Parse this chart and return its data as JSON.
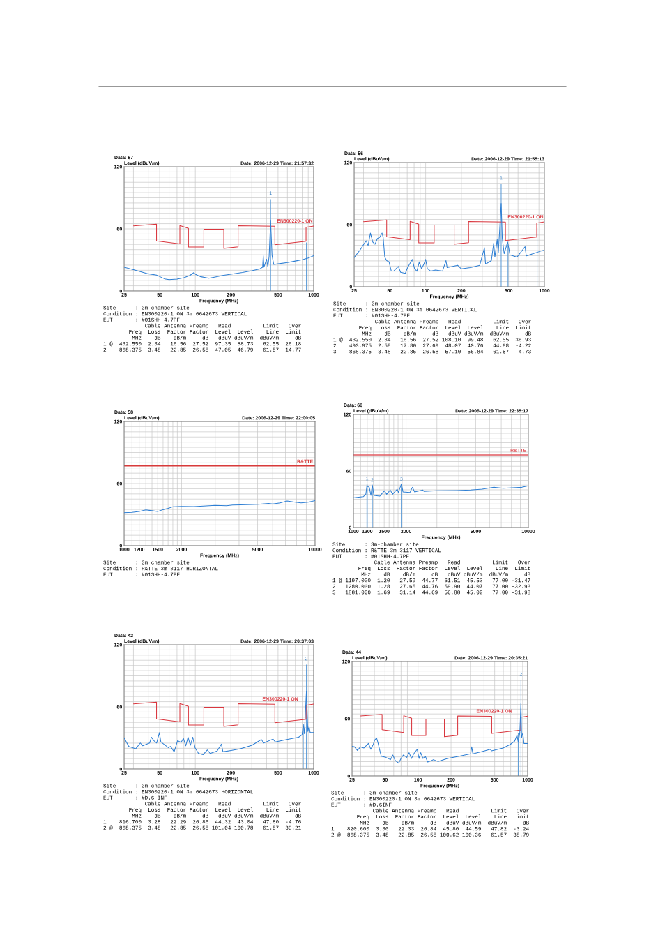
{
  "chart_data": [
    {
      "type": "line",
      "title": "Date: 2006-12-29 Time: 21:57:32",
      "subtitle": "Data: 67",
      "xlabel": "Frequency (MHz)",
      "ylabel": "Level (dBuV/m)",
      "log": "x",
      "grid": true,
      "xlim": [
        25,
        1000
      ],
      "ylim": [
        0,
        120
      ],
      "xticks": [
        25,
        {
          "value": 30,
          "label": null
        },
        {
          "value": 40,
          "label": null
        },
        50,
        {
          "value": 60,
          "label": null
        },
        {
          "value": 70,
          "label": null
        },
        {
          "value": 80,
          "label": null
        },
        {
          "value": 90,
          "label": null
        },
        100,
        200,
        {
          "value": 300,
          "label": null
        },
        {
          "value": 400,
          "label": null
        },
        500,
        {
          "value": 600,
          "label": null
        },
        {
          "value": 700,
          "label": null
        },
        {
          "value": 800,
          "label": null
        },
        {
          "value": 900,
          "label": null
        },
        1000
      ],
      "yticks": [
        0,
        {
          "value": 5,
          "label": null
        },
        {
          "value": 10,
          "label": null
        },
        {
          "value": 15,
          "label": null
        },
        {
          "value": 20,
          "label": null
        },
        {
          "value": 25,
          "label": null
        },
        {
          "value": 30,
          "label": null
        },
        {
          "value": 35,
          "label": null
        },
        {
          "value": 40,
          "label": null
        },
        {
          "value": 45,
          "label": null
        },
        {
          "value": 50,
          "label": null
        },
        {
          "value": 55,
          "label": null
        },
        60,
        {
          "value": 65,
          "label": null
        },
        {
          "value": 70,
          "label": null
        },
        {
          "value": 75,
          "label": null
        },
        {
          "value": 80,
          "label": null
        },
        {
          "value": 85,
          "label": null
        },
        {
          "value": 90,
          "label": null
        },
        {
          "value": 95,
          "label": null
        },
        {
          "value": 100,
          "label": null
        },
        {
          "value": 105,
          "label": null
        },
        {
          "value": 110,
          "label": null
        },
        {
          "value": 115,
          "label": null
        },
        120
      ],
      "series": [
        {
          "name": "EN300220-1 ON",
          "color": "#d9363e",
          "x": [
            30,
            47,
            47,
            74,
            74,
            87.5,
            87.5,
            118,
            118,
            174,
            174,
            230,
            230,
            470,
            470,
            862,
            862,
            1000
          ],
          "values": [
            62.9,
            64.5,
            48.4,
            45.5,
            63.2,
            60.5,
            42.5,
            42.5,
            59.6,
            59.6,
            41.2,
            42.6,
            63.0,
            62.5,
            44.7,
            48.1,
            61.5,
            62.7
          ]
        },
        {
          "color": "#2e7fd4",
          "x": [
            25,
            30,
            40,
            47,
            50,
            55,
            60,
            70,
            80,
            90,
            97,
            100,
            110,
            130,
            150,
            170,
            200,
            250,
            300,
            350,
            370,
            375,
            380,
            400,
            410,
            420,
            432.55,
            445,
            460,
            500,
            600,
            700,
            800,
            900,
            1000
          ],
          "values": [
            22.9,
            20.6,
            16.6,
            15.3,
            13.9,
            11.7,
            11.0,
            11.4,
            12.8,
            15.0,
            17.7,
            16.2,
            13.9,
            12.3,
            13.7,
            15.0,
            16.2,
            17.9,
            19.5,
            21.3,
            22.9,
            34.1,
            23.0,
            30.7,
            23.3,
            33.0,
            67.7,
            34.1,
            25.6,
            26.2,
            27.4,
            28.9,
            30.1,
            31.9,
            34.1
          ]
        },
        {
          "type": "bar",
          "color": "#5a9ad6",
          "x": [
            432.55,
            868.375
          ],
          "values": [
            88.73,
            46.79
          ]
        }
      ],
      "annotations": [
        {
          "text": "1",
          "x": 432.55,
          "y": 88.73
        },
        "Site      : 3m chamber site",
        "Condition : EN300220-1 ON 3m 0642673 VERTICAL",
        "EUT       : #01SHH-4.7PF",
        "             Cable Antenna Preamp   Read          Limit   Over",
        "        Freq  Loss  Factor Factor  Level  Level    Line  Limit",
        "         MHz    dB    dB/m     dB   dBuV dBuV/m  dBuV/m     dB",
        "1 @  432.550  2.34   16.56  27.52  97.35  88.73   62.55  26.18",
        "2    868.375  3.48   22.85  26.58  47.05  46.79   61.57 -14.77"
      ]
    },
    {
      "type": "line",
      "title": "Date: 2006-12-29 Time: 21:55:13",
      "subtitle": "Data: 56",
      "xlabel": "Frequency (MHz)",
      "ylabel": "Level (dBuV/m)",
      "log": "x",
      "grid": true,
      "xlim": [
        25,
        1000
      ],
      "ylim": [
        0,
        120
      ],
      "xticks": [
        25,
        {
          "value": 30,
          "label": null
        },
        {
          "value": 40,
          "label": null
        },
        50,
        {
          "value": 60,
          "label": null
        },
        {
          "value": 70,
          "label": null
        },
        {
          "value": 80,
          "label": null
        },
        {
          "value": 90,
          "label": null
        },
        100,
        200,
        {
          "value": 300,
          "label": null
        },
        {
          "value": 400,
          "label": null
        },
        500,
        {
          "value": 600,
          "label": null
        },
        {
          "value": 700,
          "label": null
        },
        {
          "value": 800,
          "label": null
        },
        {
          "value": 900,
          "label": null
        },
        1000
      ],
      "yticks": [
        0,
        {
          "value": 5,
          "label": null
        },
        {
          "value": 10,
          "label": null
        },
        {
          "value": 15,
          "label": null
        },
        {
          "value": 20,
          "label": null
        },
        {
          "value": 25,
          "label": null
        },
        {
          "value": 30,
          "label": null
        },
        {
          "value": 35,
          "label": null
        },
        {
          "value": 40,
          "label": null
        },
        {
          "value": 45,
          "label": null
        },
        {
          "value": 50,
          "label": null
        },
        {
          "value": 55,
          "label": null
        },
        60,
        {
          "value": 65,
          "label": null
        },
        {
          "value": 70,
          "label": null
        },
        {
          "value": 75,
          "label": null
        },
        {
          "value": 80,
          "label": null
        },
        {
          "value": 85,
          "label": null
        },
        {
          "value": 90,
          "label": null
        },
        {
          "value": 95,
          "label": null
        },
        {
          "value": 100,
          "label": null
        },
        {
          "value": 105,
          "label": null
        },
        {
          "value": 110,
          "label": null
        },
        {
          "value": 115,
          "label": null
        },
        120
      ],
      "series": [
        {
          "name": "EN300220-1 ON",
          "color": "#d9363e",
          "x": [
            30,
            47,
            47,
            74,
            74,
            87.5,
            87.5,
            118,
            118,
            174,
            174,
            230,
            230,
            470,
            470,
            862,
            862,
            1000
          ],
          "values": [
            62.9,
            64.5,
            48.4,
            45.5,
            63.2,
            60.5,
            42.5,
            42.5,
            59.6,
            59.6,
            41.2,
            42.6,
            63.0,
            62.5,
            44.7,
            48.1,
            61.5,
            62.7
          ]
        },
        {
          "color": "#2e7fd4",
          "x": [
            25,
            28.0,
            30.6,
            31.6,
            32.8,
            34.3,
            35.9,
            37.5,
            39.3,
            41.1,
            43.0,
            43.9,
            45.3,
            47.0,
            49.2,
            51.4,
            53.8,
            58.9,
            61.6,
            67.4,
            70.5,
            77.2,
            80.7,
            84.5,
            88.4,
            92.4,
            96.7,
            100,
            103.5,
            110.7,
            121.2,
            138.7,
            148.4,
            151.8,
            186,
            199,
            238.3,
            285.5,
            312.5,
            319.6,
            357.7,
            374.2,
            382.8,
            400.5,
            409.6,
            432.55,
            442.1,
            458.5,
            490.6,
            513.3,
            587.4,
            687.7,
            703.6,
            805.3,
            922.2,
            1000
          ],
          "values": [
            28.2,
            35.4,
            42.2,
            44.4,
            39.9,
            51.9,
            43.3,
            41.1,
            46.7,
            47.8,
            51.9,
            47.8,
            28.6,
            25.3,
            24.1,
            15.1,
            15.1,
            19.6,
            14.0,
            12.9,
            18.5,
            26.4,
            17.4,
            15.1,
            24.1,
            17.4,
            21.9,
            26.4,
            17.4,
            15.1,
            16.2,
            15.1,
            25.3,
            18.5,
            20.8,
            17.4,
            18.5,
            20.8,
            37.7,
            21.9,
            25.3,
            42.2,
            28.6,
            45.6,
            33.2,
            80.5,
            46.7,
            32.0,
            43.3,
            30.9,
            28.6,
            38.8,
            29.8,
            32.0,
            34.3,
            35.4
          ]
        },
        {
          "type": "bar",
          "color": "#5a9ad6",
          "x": [
            432.55,
            493.975,
            868.375
          ],
          "values": [
            99.48,
            40.76,
            56.84
          ]
        }
      ],
      "annotations": [
        {
          "text": "1",
          "x": 432.55,
          "y": 99.48
        },
        "Site      : 3m-chamber site",
        "Condition : EN300220-1 ON 3m 0642673 VERTICAL",
        "EUT       : #01SHH-4.7PF",
        "             Cable Antenna Preamp   Read          Limit   Over",
        "        Freq  Loss  Factor Factor  Level  Level    Line  Limit",
        "         MHz    dB    dB/m     dB   dBuV dBuV/m  dBuV/m     dB",
        "1 @  432.550  2.34   16.56  27.52 108.10  99.48   62.55  36.93",
        "2    493.975  2.58   17.80  27.69  48.07  40.76   44.98  -4.22",
        "3    868.375  3.48   22.85  26.58  57.10  56.84   61.57  -4.73"
      ]
    },
    {
      "type": "line",
      "title": "Date: 2006-12-29 Time: 22:00:05",
      "subtitle": "Data: 58",
      "xlabel": "Frequency (MHz)",
      "ylabel": "Level (dBuV/m)",
      "log": "x",
      "grid": true,
      "xlim": [
        1000,
        10000
      ],
      "ylim": [
        0,
        120
      ],
      "xticks": [
        1000,
        {
          "value": 1100,
          "label": null
        },
        1200,
        {
          "value": 1300,
          "label": null
        },
        {
          "value": 1400,
          "label": null
        },
        1500,
        {
          "value": 1600,
          "label": null
        },
        {
          "value": 1700,
          "label": null
        },
        {
          "value": 1800,
          "label": null
        },
        {
          "value": 1900,
          "label": null
        },
        2000,
        {
          "value": 3000,
          "label": null
        },
        {
          "value": 4000,
          "label": null
        },
        5000,
        {
          "value": 6000,
          "label": null
        },
        {
          "value": 7000,
          "label": null
        },
        {
          "value": 8000,
          "label": null
        },
        {
          "value": 9000,
          "label": null
        },
        10000
      ],
      "yticks": [
        0,
        {
          "value": 5,
          "label": null
        },
        {
          "value": 10,
          "label": null
        },
        {
          "value": 15,
          "label": null
        },
        {
          "value": 20,
          "label": null
        },
        {
          "value": 25,
          "label": null
        },
        {
          "value": 30,
          "label": null
        },
        {
          "value": 35,
          "label": null
        },
        {
          "value": 40,
          "label": null
        },
        {
          "value": 45,
          "label": null
        },
        {
          "value": 50,
          "label": null
        },
        {
          "value": 55,
          "label": null
        },
        60,
        {
          "value": 65,
          "label": null
        },
        {
          "value": 70,
          "label": null
        },
        {
          "value": 75,
          "label": null
        },
        {
          "value": 80,
          "label": null
        },
        {
          "value": 85,
          "label": null
        },
        {
          "value": 90,
          "label": null
        },
        {
          "value": 95,
          "label": null
        },
        {
          "value": 100,
          "label": null
        },
        {
          "value": 105,
          "label": null
        },
        {
          "value": 110,
          "label": null
        },
        {
          "value": 115,
          "label": null
        },
        120
      ],
      "ref_lines": [
        {
          "axis": "y",
          "value": 77,
          "label": "R&TTE",
          "color": "#d83a3a"
        }
      ],
      "series": [
        {
          "color": "#2e7fd4",
          "x": [
            1000,
            1100,
            1200,
            1300,
            1400,
            1500,
            1600,
            1700,
            1800,
            2000,
            2322,
            2600,
            2990,
            3440,
            3700,
            4072,
            5025,
            5704,
            6000,
            6564,
            7140,
            7766,
            8000,
            8448,
            9193,
            10000
          ],
          "values": [
            31.9,
            32.2,
            33.0,
            34.5,
            33.8,
            33.0,
            34.8,
            36.0,
            37.5,
            37.9,
            37.7,
            38.2,
            39.0,
            38.6,
            39.2,
            39.5,
            39.9,
            40.8,
            40.2,
            41.3,
            43.1,
            42.2,
            41.8,
            41.3,
            41.9,
            43.5
          ]
        }
      ],
      "annotations": [
        "Site      : 3m chamber site",
        "Condition : R&TTE 3m 3117 HORIZONTAL",
        "EUT       : #01SHH-4.7PF"
      ]
    },
    {
      "type": "line",
      "title": "Date: 2006-12-29 Time: 22:35:17",
      "subtitle": "Data: 60",
      "xlabel": "Frequency (MHz)",
      "ylabel": "Level (dBuV/m)",
      "log": "x",
      "grid": true,
      "xlim": [
        1000,
        10000
      ],
      "ylim": [
        0,
        120
      ],
      "xticks": [
        1000,
        {
          "value": 1100,
          "label": null
        },
        1200,
        {
          "value": 1300,
          "label": null
        },
        {
          "value": 1400,
          "label": null
        },
        1500,
        {
          "value": 1600,
          "label": null
        },
        {
          "value": 1700,
          "label": null
        },
        {
          "value": 1800,
          "label": null
        },
        {
          "value": 1900,
          "label": null
        },
        2000,
        {
          "value": 3000,
          "label": null
        },
        {
          "value": 4000,
          "label": null
        },
        5000,
        {
          "value": 6000,
          "label": null
        },
        {
          "value": 7000,
          "label": null
        },
        {
          "value": 8000,
          "label": null
        },
        {
          "value": 9000,
          "label": null
        },
        10000
      ],
      "yticks": [
        0,
        {
          "value": 5,
          "label": null
        },
        {
          "value": 10,
          "label": null
        },
        {
          "value": 15,
          "label": null
        },
        {
          "value": 20,
          "label": null
        },
        {
          "value": 25,
          "label": null
        },
        {
          "value": 30,
          "label": null
        },
        {
          "value": 35,
          "label": null
        },
        {
          "value": 40,
          "label": null
        },
        {
          "value": 45,
          "label": null
        },
        {
          "value": 50,
          "label": null
        },
        {
          "value": 55,
          "label": null
        },
        60,
        {
          "value": 65,
          "label": null
        },
        {
          "value": 70,
          "label": null
        },
        {
          "value": 75,
          "label": null
        },
        {
          "value": 80,
          "label": null
        },
        {
          "value": 85,
          "label": null
        },
        {
          "value": 90,
          "label": null
        },
        {
          "value": 95,
          "label": null
        },
        {
          "value": 100,
          "label": null
        },
        {
          "value": 105,
          "label": null
        },
        {
          "value": 110,
          "label": null
        },
        {
          "value": 115,
          "label": null
        },
        120
      ],
      "ref_lines": [
        {
          "axis": "y",
          "value": 77,
          "label": "R&TTE",
          "color": "#e05a60"
        }
      ],
      "series": [
        {
          "color": "#2e7fd4",
          "x": [
            1000,
            1141,
            1177,
            1195,
            1232,
            1259,
            1282,
            1310,
            1414,
            1503,
            1550,
            1623,
            1674,
            1779,
            1807,
            1881,
            1921,
            2106,
            2173,
            2239,
            2494,
            2532,
            2997,
            3890,
            4676,
            5449,
            6353,
            7180,
            8120,
            9178,
            10000
          ],
          "values": [
            31.6,
            32.8,
            35.3,
            44.0,
            42.7,
            34.1,
            45.2,
            34.1,
            33.3,
            39.0,
            35.3,
            39.8,
            35.3,
            40.7,
            37.3,
            46.4,
            37.8,
            37.3,
            42.7,
            37.8,
            39.8,
            38.3,
            39.0,
            39.3,
            39.8,
            40.7,
            42.7,
            41.7,
            42.2,
            42.7,
            44.2
          ]
        },
        {
          "type": "bar",
          "color": "#5a9ad6",
          "x": [
            1197,
            1280,
            1881
          ],
          "values": [
            45.53,
            44.07,
            45.02
          ]
        }
      ],
      "annotations": [
        {
          "text": "1",
          "x": 1197,
          "y": 45.53
        },
        {
          "text": "2",
          "x": 1280,
          "y": 44.07
        },
        {
          "text": "3",
          "x": 1881,
          "y": 45.02
        },
        "Site      : 3m-chamber site",
        "Condition : R&TTE 3m 3117 VERTICAL",
        "EUT       : #01SHH-4.7PF",
        "             Cable Antenna Preamp   Read          Limit   Over",
        "        Freq  Loss  Factor Factor  Level  Level    Line  Limit",
        "         MHz    dB    dB/m     dB   dBuV dBuV/m  dBuV/m     dB",
        "1 @ 1197.000  1.20   27.59  44.77  61.51  45.53   77.00 -31.47",
        "2   1280.000  1.28   27.65  44.76  59.90  44.07   77.00 -32.93",
        "3   1881.000  1.69   31.14  44.69  56.88  45.02   77.00 -31.98"
      ]
    },
    {
      "type": "line",
      "title": "Date: 2006-12-29 Time: 20:37:03",
      "subtitle": "Data: 42",
      "xlabel": "Frequency (MHz)",
      "ylabel": "Level (dBuV/m)",
      "log": "x",
      "grid": true,
      "xlim": [
        25,
        1000
      ],
      "ylim": [
        0,
        120
      ],
      "xticks": [
        25,
        {
          "value": 30,
          "label": null
        },
        {
          "value": 40,
          "label": null
        },
        50,
        {
          "value": 60,
          "label": null
        },
        {
          "value": 70,
          "label": null
        },
        {
          "value": 80,
          "label": null
        },
        {
          "value": 90,
          "label": null
        },
        100,
        200,
        {
          "value": 300,
          "label": null
        },
        {
          "value": 400,
          "label": null
        },
        500,
        {
          "value": 600,
          "label": null
        },
        {
          "value": 700,
          "label": null
        },
        {
          "value": 800,
          "label": null
        },
        {
          "value": 900,
          "label": null
        },
        1000
      ],
      "yticks": [
        0,
        {
          "value": 5,
          "label": null
        },
        {
          "value": 10,
          "label": null
        },
        {
          "value": 15,
          "label": null
        },
        {
          "value": 20,
          "label": null
        },
        {
          "value": 25,
          "label": null
        },
        {
          "value": 30,
          "label": null
        },
        {
          "value": 35,
          "label": null
        },
        {
          "value": 40,
          "label": null
        },
        {
          "value": 45,
          "label": null
        },
        {
          "value": 50,
          "label": null
        },
        {
          "value": 55,
          "label": null
        },
        60,
        {
          "value": 65,
          "label": null
        },
        {
          "value": 70,
          "label": null
        },
        {
          "value": 75,
          "label": null
        },
        {
          "value": 80,
          "label": null
        },
        {
          "value": 85,
          "label": null
        },
        {
          "value": 90,
          "label": null
        },
        {
          "value": 95,
          "label": null
        },
        {
          "value": 100,
          "label": null
        },
        {
          "value": 105,
          "label": null
        },
        {
          "value": 110,
          "label": null
        },
        {
          "value": 115,
          "label": null
        },
        120
      ],
      "series": [
        {
          "name": "EN300220-1 ON",
          "color": "#d9363e",
          "x": [
            30,
            47,
            47,
            74,
            74,
            87.5,
            87.5,
            118,
            118,
            174,
            174,
            230,
            230,
            470,
            470,
            862,
            862,
            1000
          ],
          "values": [
            62.9,
            64.5,
            48.4,
            45.5,
            63.2,
            60.5,
            42.5,
            42.5,
            59.6,
            59.6,
            41.2,
            42.6,
            63.0,
            62.5,
            44.7,
            48.1,
            61.5,
            62.7
          ]
        },
        {
          "color": "#2e7fd4",
          "x": [
            25,
            27.4,
            31.3,
            34.3,
            35.9,
            41.1,
            42.6,
            44.6,
            47.1,
            49.7,
            51.1,
            59.1,
            61.8,
            66.2,
            70.8,
            75.8,
            79.3,
            83.0,
            86.8,
            90.8,
            95.1,
            99.4,
            106.4,
            116.5,
            126.4,
            133.4,
            152.8,
            165.8,
            171.2,
            200.6,
            240.3,
            301.3,
            361.3,
            378.1,
            453.1,
            474.1,
            594.3,
            745.6,
            797.5,
            816.7,
            834.5,
            868.375,
            893.3,
            913.6,
            934.6,
            1000
          ],
          "values": [
            30.1,
            21.8,
            19.5,
            25.1,
            22.4,
            25.1,
            30.7,
            27.4,
            25.1,
            35.2,
            26.2,
            20.6,
            21.8,
            16.6,
            27.4,
            25.6,
            29.6,
            22.4,
            30.7,
            22.9,
            30.7,
            20.6,
            15.0,
            13.9,
            18.4,
            15.0,
            17.3,
            24.0,
            16.6,
            17.9,
            19.5,
            22.9,
            28.5,
            25.1,
            28.9,
            26.2,
            28.5,
            30.7,
            33.0,
            43.1,
            34.1,
            74.9,
            36.3,
            40.8,
            35.2,
            35.2
          ]
        },
        {
          "type": "bar",
          "color": "#5a9ad6",
          "x": [
            816.7,
            868.375
          ],
          "values": [
            43.04,
            100.78
          ]
        }
      ],
      "annotations": [
        {
          "text": "2",
          "x": 868.375,
          "y": 100.78
        },
        "Site      : 3m-chamber site",
        "Condition : EN300220-1 ON 3m 0642673 HORIZONTAL",
        "EUT       : #D.6 INF",
        "             Cable Antenna Preamp   Read          Limit   Over",
        "        Freq  Loss  Factor Factor  Level  Level    Line  Limit",
        "         MHz    dB    dB/m     dB   dBuV dBuV/m  dBuV/m     dB",
        "1    816.700  3.28   22.29  26.86  44.32  43.04   47.80  -4.76",
        "2 @  868.375  3.48   22.85  26.58 101.04 100.78   61.57  39.21"
      ]
    },
    {
      "type": "line",
      "title": "Date: 2006-12-29 Time: 20:35:21",
      "subtitle": "Data: 44",
      "xlabel": "Frequency (MHz)",
      "ylabel": "Level (dBuV/m)",
      "log": "x",
      "grid": true,
      "xlim": [
        25,
        1000
      ],
      "ylim": [
        0,
        120
      ],
      "xticks": [
        25,
        {
          "value": 30,
          "label": null
        },
        {
          "value": 40,
          "label": null
        },
        50,
        {
          "value": 60,
          "label": null
        },
        {
          "value": 70,
          "label": null
        },
        {
          "value": 80,
          "label": null
        },
        {
          "value": 90,
          "label": null
        },
        100,
        200,
        {
          "value": 300,
          "label": null
        },
        {
          "value": 400,
          "label": null
        },
        500,
        {
          "value": 600,
          "label": null
        },
        {
          "value": 700,
          "label": null
        },
        {
          "value": 800,
          "label": null
        },
        {
          "value": 900,
          "label": null
        },
        1000
      ],
      "yticks": [
        0,
        {
          "value": 5,
          "label": null
        },
        {
          "value": 10,
          "label": null
        },
        {
          "value": 15,
          "label": null
        },
        {
          "value": 20,
          "label": null
        },
        {
          "value": 25,
          "label": null
        },
        {
          "value": 30,
          "label": null
        },
        {
          "value": 35,
          "label": null
        },
        {
          "value": 40,
          "label": null
        },
        {
          "value": 45,
          "label": null
        },
        {
          "value": 50,
          "label": null
        },
        {
          "value": 55,
          "label": null
        },
        60,
        {
          "value": 65,
          "label": null
        },
        {
          "value": 70,
          "label": null
        },
        {
          "value": 75,
          "label": null
        },
        {
          "value": 80,
          "label": null
        },
        {
          "value": 85,
          "label": null
        },
        {
          "value": 90,
          "label": null
        },
        {
          "value": 95,
          "label": null
        },
        {
          "value": 100,
          "label": null
        },
        {
          "value": 105,
          "label": null
        },
        {
          "value": 110,
          "label": null
        },
        {
          "value": 115,
          "label": null
        },
        120
      ],
      "series": [
        {
          "name": "EN300220-1 ON",
          "color": "#d9363e",
          "x": [
            30,
            47,
            47,
            74,
            74,
            87.5,
            87.5,
            118,
            118,
            174,
            174,
            230,
            230,
            470,
            470,
            862,
            862,
            1000
          ],
          "values": [
            62.9,
            64.5,
            48.4,
            45.5,
            63.2,
            60.5,
            42.5,
            42.5,
            59.6,
            59.6,
            41.2,
            42.6,
            63.0,
            62.5,
            44.7,
            48.1,
            61.5,
            62.7
          ]
        },
        {
          "color": "#2e7fd4",
          "x": [
            25,
            26.4,
            28.0,
            29.8,
            32.1,
            35.3,
            37.1,
            39.0,
            40.3,
            41.9,
            43.0,
            44.0,
            46.2,
            50.9,
            56.1,
            58.9,
            61.9,
            66.6,
            69.9,
            73.4,
            79.0,
            82.9,
            87.1,
            91.4,
            98.3,
            102.2,
            105.8,
            111.0,
            116.6,
            122.4,
            131.7,
            138.3,
            152.5,
            185.3,
            236.4,
            301.5,
            309.0,
            316.7,
            384.8,
            456.3,
            467.7,
            596.8,
            690.7,
            761.3,
            799.3,
            820.6,
            847.5,
            868.375,
            881,
            903,
            925.3,
            1000
          ],
          "values": [
            31.0,
            30.5,
            26.8,
            30.5,
            29.3,
            34.1,
            28.0,
            32.9,
            37.8,
            39.8,
            35.4,
            30.5,
            20.7,
            19.5,
            17.1,
            22.0,
            16.3,
            13.4,
            18.3,
            22.0,
            19.5,
            24.4,
            18.3,
            23.2,
            28.0,
            18.3,
            24.4,
            18.3,
            20.7,
            14.6,
            15.9,
            17.1,
            15.1,
            18.3,
            20.7,
            23.2,
            30.5,
            23.2,
            25.6,
            28.0,
            26.3,
            29.3,
            32.9,
            36.6,
            42.7,
            35.4,
            45.1,
            76.3,
            40.2,
            45.1,
            34.1,
            34.1
          ]
        },
        {
          "type": "bar",
          "color": "#5a9ad6",
          "x": [
            820.6,
            868.375
          ],
          "values": [
            44.59,
            100.36
          ]
        }
      ],
      "annotations": [
        {
          "text": "2",
          "x": 868.375,
          "y": 100.36
        },
        "Site      : 3m-chamber site",
        "Condition : EN300220-1 ON 3m 0642673 VERTICAL",
        "EUT       : #D.6INF",
        "             Cable Antenna Preamp   Read          Limit   Over",
        "        Freq  Loss  Factor Factor  Level  Level    Line  Limit",
        "         MHz    dB    dB/m     dB   dBuV dBuV/m  dBuV/m     dB",
        "1    820.600  3.30   22.33  26.84  45.80  44.59   47.82  -3.24",
        "2 @  868.375  3.48   22.85  26.58 100.62 100.36   61.57  38.79"
      ]
    }
  ]
}
